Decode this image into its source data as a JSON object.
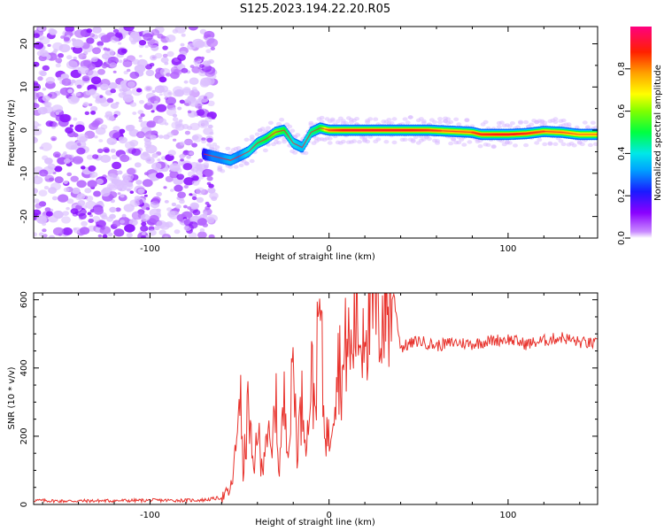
{
  "title": "S125.2023.194.22.20.R05",
  "chart_data": [
    {
      "type": "heatmap",
      "xlabel": "Height of straight line (km)",
      "ylabel": "Frequency (Hz)",
      "xlim": [
        -165,
        150
      ],
      "ylim": [
        -25,
        24
      ],
      "x_ticks": [
        -100,
        0,
        100
      ],
      "y_ticks": [
        -20,
        -10,
        0,
        10,
        20
      ],
      "colorbar": {
        "label": "Normalized spectral amplitude",
        "range": [
          0,
          1
        ],
        "ticks": [
          "0.0",
          "0.2",
          "0.4",
          "0.6",
          "0.8"
        ],
        "colormap": "rainbow (purple to red/magenta), white below threshold"
      },
      "ridge": {
        "x": [
          -70,
          -65,
          -60,
          -55,
          -50,
          -45,
          -40,
          -35,
          -30,
          -25,
          -20,
          -15,
          -10,
          -5,
          0,
          10,
          25,
          40,
          55,
          70,
          80,
          85,
          100,
          110,
          120,
          130,
          140,
          150
        ],
        "y": [
          -5.5,
          -6,
          -6.5,
          -7,
          -6,
          -5,
          -3,
          -2,
          -0.5,
          0,
          -3,
          -4,
          -0.5,
          0.5,
          0,
          0,
          0,
          0,
          0,
          -0.3,
          -0.5,
          -1,
          -1,
          -0.8,
          -0.3,
          -0.5,
          -1,
          -1
        ],
        "level": [
          0.2,
          0.3,
          0.3,
          0.35,
          0.3,
          0.4,
          0.45,
          0.5,
          0.6,
          0.5,
          0.4,
          0.35,
          0.45,
          0.5,
          0.8,
          0.9,
          0.95,
          0.9,
          0.85,
          0.75,
          0.8,
          0.85,
          0.9,
          0.85,
          0.8,
          0.75,
          0.7,
          0.7
        ]
      },
      "noise_region": {
        "x_end": -70,
        "level": "low (0.0-0.2)"
      }
    },
    {
      "type": "line",
      "xlabel": "Height of straight line (km)",
      "ylabel": "SNR (10 * v/v)",
      "xlim": [
        -165,
        150
      ],
      "ylim": [
        0,
        620
      ],
      "x_ticks": [
        -100,
        0,
        100
      ],
      "y_ticks": [
        0,
        200,
        400,
        600
      ],
      "color": "#e8322c",
      "series": [
        {
          "x": [
            -165,
            -150,
            -120,
            -100,
            -80,
            -70,
            -60,
            -55,
            -52,
            -50,
            -48,
            -45,
            -42,
            -40,
            -38,
            -35,
            -32,
            -30,
            -28,
            -25,
            -22,
            -20,
            -18,
            -15,
            -12,
            -10,
            -8,
            -5,
            -3,
            0,
            2,
            5,
            8,
            10,
            12,
            15,
            18,
            20,
            22,
            25,
            28,
            30,
            32,
            34,
            36,
            38,
            40,
            50,
            60,
            70,
            80,
            90,
            100,
            110,
            120,
            130,
            140,
            150
          ],
          "y": [
            12,
            10,
            11,
            12,
            12,
            13,
            20,
            40,
            150,
            390,
            80,
            300,
            60,
            260,
            90,
            230,
            120,
            330,
            100,
            300,
            180,
            450,
            170,
            300,
            200,
            390,
            290,
            600,
            260,
            180,
            300,
            430,
            370,
            510,
            420,
            560,
            480,
            590,
            520,
            580,
            545,
            560,
            600,
            575,
            620,
            540,
            460,
            480,
            465,
            475,
            470,
            480,
            485,
            470,
            480,
            490,
            475,
            470
          ]
        }
      ]
    }
  ]
}
